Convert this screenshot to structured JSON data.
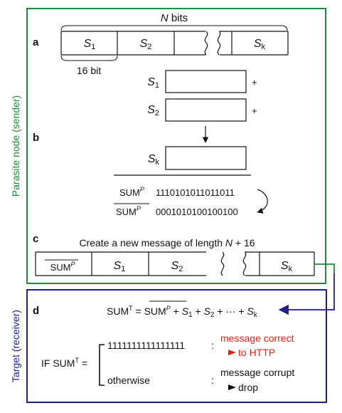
{
  "sender_label": "Parasite node (sender)",
  "receiver_label": "Target (receiver)",
  "colors": {
    "sender": "#1f8a3a",
    "receiver": "#1c1e8c",
    "correct": "#e8201a",
    "ink": "#111111"
  },
  "panel_a": {
    "label": "a",
    "n_bits": {
      "var": "N",
      "text": "bits"
    },
    "segments": [
      {
        "base": "S",
        "sub": "1"
      },
      {
        "base": "S",
        "sub": "2"
      },
      {
        "base": "",
        "sub": ""
      },
      {
        "base": "S",
        "sub": "k"
      }
    ],
    "segment_size": "16 bit"
  },
  "panel_b": {
    "label": "b",
    "rows": [
      {
        "base": "S",
        "sub": "1",
        "op": "+"
      },
      {
        "base": "S",
        "sub": "2",
        "op": "+"
      },
      {
        "base": "S",
        "sub": "k",
        "op": ""
      }
    ],
    "sum": {
      "base": "SUM",
      "sup": "P",
      "bits": "1110101011011011"
    },
    "sum_complement": {
      "base": "SUM",
      "sup": "P",
      "bits": "0001010100100100"
    }
  },
  "panel_c": {
    "label": "c",
    "caption_prefix": "Create a new message of length ",
    "caption_var": "N",
    "caption_suffix": " + 16",
    "segments": [
      {
        "base": "SUM",
        "sup": "P"
      },
      {
        "base": "S",
        "sub": "1"
      },
      {
        "base": "S",
        "sub": "2"
      },
      {
        "base": "",
        "sub": ""
      },
      {
        "base": "S",
        "sub": "k"
      }
    ]
  },
  "panel_d": {
    "label": "d",
    "eq_lhs": "SUM",
    "eq_lhs_sup": "T",
    "eq_equals": " = ",
    "eq_plus": " + ",
    "eq_s": "S",
    "eq_sub1": "1",
    "eq_sub2": "2",
    "eq_dots": " + ··· + ",
    "eq_subk": "k",
    "if_prefix": "IF SUM",
    "if_sup": "T",
    "if_equals": " =",
    "case1_value": "1111111111111111",
    "case1_colon": ":",
    "case1_text": "message correct",
    "case1_action": "to HTTP",
    "case2_value": "otherwise",
    "case2_colon": ":",
    "case2_text": "message corrupt",
    "case2_action": "drop"
  }
}
